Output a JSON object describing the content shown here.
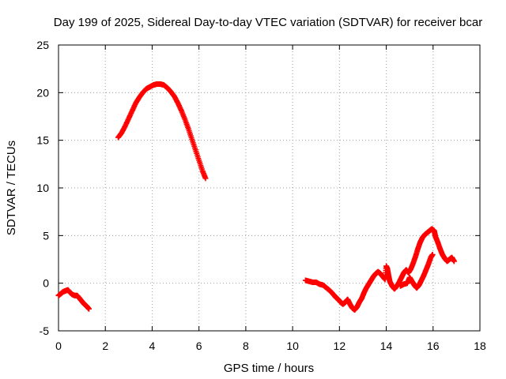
{
  "chart_data": {
    "type": "scatter",
    "title": "Day 199 of 2025, Sidereal Day-to-day VTEC variation (SDTVAR) for receiver bcar",
    "xlabel": "GPS time / hours",
    "ylabel": "SDTVAR / TECUs",
    "xlim": [
      0,
      18
    ],
    "ylim": [
      -5,
      25
    ],
    "xticks": [
      0,
      2,
      4,
      6,
      8,
      10,
      12,
      14,
      16,
      18
    ],
    "yticks": [
      -5,
      0,
      5,
      10,
      15,
      20,
      25
    ],
    "grid": true,
    "marker": "+",
    "series": [
      {
        "name": "SDTVAR",
        "color": "#ff0000",
        "segments": [
          [
            [
              0.0,
              -1.3
            ],
            [
              0.1,
              -1.1
            ],
            [
              0.2,
              -0.9
            ],
            [
              0.3,
              -0.8
            ],
            [
              0.4,
              -0.7
            ],
            [
              0.5,
              -1.0
            ],
            [
              0.6,
              -1.2
            ],
            [
              0.7,
              -1.3
            ],
            [
              0.8,
              -1.3
            ],
            [
              0.9,
              -1.6
            ],
            [
              1.0,
              -1.9
            ],
            [
              1.1,
              -2.2
            ],
            [
              1.2,
              -2.4
            ],
            [
              1.3,
              -2.7
            ]
          ],
          [
            [
              2.55,
              15.3
            ],
            [
              2.7,
              15.8
            ],
            [
              2.85,
              16.5
            ],
            [
              3.0,
              17.3
            ],
            [
              3.15,
              18.1
            ],
            [
              3.3,
              18.9
            ],
            [
              3.45,
              19.5
            ],
            [
              3.6,
              20.0
            ],
            [
              3.75,
              20.4
            ],
            [
              3.9,
              20.6
            ],
            [
              4.05,
              20.8
            ],
            [
              4.2,
              20.9
            ],
            [
              4.35,
              20.9
            ],
            [
              4.5,
              20.8
            ],
            [
              4.65,
              20.5
            ],
            [
              4.8,
              20.1
            ],
            [
              4.95,
              19.6
            ],
            [
              5.1,
              18.9
            ],
            [
              5.25,
              18.1
            ],
            [
              5.4,
              17.2
            ],
            [
              5.55,
              16.2
            ],
            [
              5.7,
              15.1
            ],
            [
              5.85,
              14.0
            ],
            [
              6.0,
              12.9
            ],
            [
              6.15,
              11.8
            ],
            [
              6.28,
              11.0
            ]
          ],
          [
            [
              10.55,
              0.3
            ],
            [
              10.7,
              0.2
            ],
            [
              10.85,
              0.1
            ],
            [
              11.0,
              0.1
            ],
            [
              11.15,
              -0.1
            ],
            [
              11.3,
              -0.2
            ],
            [
              11.45,
              -0.5
            ],
            [
              11.6,
              -0.8
            ],
            [
              11.75,
              -1.2
            ],
            [
              11.85,
              -1.5
            ],
            [
              11.95,
              -1.7
            ],
            [
              12.05,
              -2.0
            ],
            [
              12.15,
              -2.2
            ],
            [
              12.25,
              -2.0
            ],
            [
              12.35,
              -1.7
            ],
            [
              12.45,
              -2.2
            ],
            [
              12.55,
              -2.6
            ],
            [
              12.65,
              -2.8
            ],
            [
              12.75,
              -2.5
            ],
            [
              12.85,
              -2.0
            ],
            [
              12.95,
              -1.6
            ],
            [
              13.05,
              -1.0
            ],
            [
              13.15,
              -0.5
            ],
            [
              13.25,
              -0.1
            ],
            [
              13.35,
              0.3
            ],
            [
              13.45,
              0.7
            ],
            [
              13.55,
              1.0
            ],
            [
              13.65,
              1.2
            ],
            [
              13.75,
              1.0
            ],
            [
              13.85,
              0.7
            ],
            [
              13.95,
              0.4
            ],
            [
              14.0,
              1.8
            ],
            [
              14.05,
              1.5
            ],
            [
              14.1,
              0.8
            ],
            [
              14.15,
              0.2
            ],
            [
              14.25,
              -0.3
            ],
            [
              14.35,
              -0.6
            ],
            [
              14.45,
              -0.3
            ],
            [
              14.55,
              0.1
            ],
            [
              14.65,
              0.6
            ],
            [
              14.75,
              1.1
            ],
            [
              14.85,
              1.4
            ],
            [
              14.95,
              1.1
            ],
            [
              15.05,
              1.5
            ],
            [
              15.15,
              2.1
            ],
            [
              15.25,
              2.8
            ],
            [
              15.35,
              3.6
            ],
            [
              15.45,
              4.3
            ],
            [
              15.55,
              4.8
            ],
            [
              15.65,
              5.1
            ],
            [
              15.75,
              5.3
            ],
            [
              15.85,
              5.5
            ],
            [
              15.95,
              5.7
            ],
            [
              16.05,
              5.5
            ],
            [
              16.1,
              4.9
            ],
            [
              16.2,
              4.3
            ],
            [
              16.3,
              3.6
            ],
            [
              16.4,
              3.0
            ],
            [
              16.5,
              2.6
            ],
            [
              16.6,
              2.3
            ],
            [
              16.7,
              2.5
            ],
            [
              16.8,
              2.7
            ],
            [
              16.9,
              2.3
            ]
          ],
          [
            [
              14.6,
              -0.3
            ],
            [
              14.75,
              -0.1
            ],
            [
              14.9,
              0.0
            ],
            [
              15.0,
              0.6
            ],
            [
              15.1,
              0.2
            ],
            [
              15.2,
              -0.2
            ],
            [
              15.3,
              -0.5
            ],
            [
              15.4,
              -0.2
            ],
            [
              15.5,
              0.3
            ],
            [
              15.6,
              0.8
            ],
            [
              15.7,
              1.4
            ],
            [
              15.8,
              2.0
            ],
            [
              15.9,
              2.7
            ],
            [
              15.98,
              3.0
            ]
          ]
        ]
      }
    ]
  }
}
